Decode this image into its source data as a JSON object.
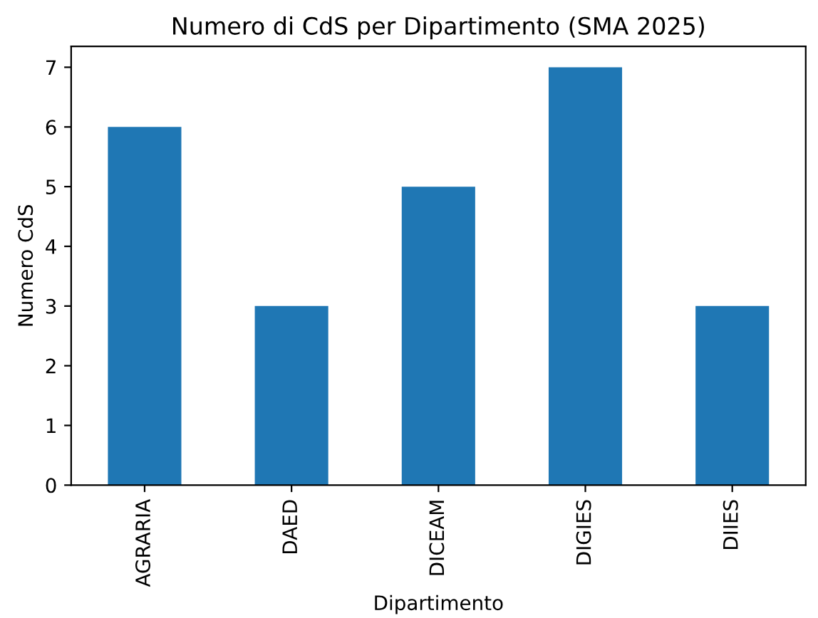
{
  "chart_data": {
    "type": "bar",
    "title": "Numero di CdS per Dipartimento (SMA 2025)",
    "xlabel": "Dipartimento",
    "ylabel": "Numero CdS",
    "categories": [
      "AGRARIA",
      "DAED",
      "DICEAM",
      "DIGIES",
      "DIIES"
    ],
    "values": [
      6,
      3,
      5,
      7,
      3
    ],
    "color": "#1f77b4",
    "ylim": [
      0,
      7.35
    ],
    "yticks": [
      0,
      1,
      2,
      3,
      4,
      5,
      6,
      7
    ],
    "grid": false
  }
}
